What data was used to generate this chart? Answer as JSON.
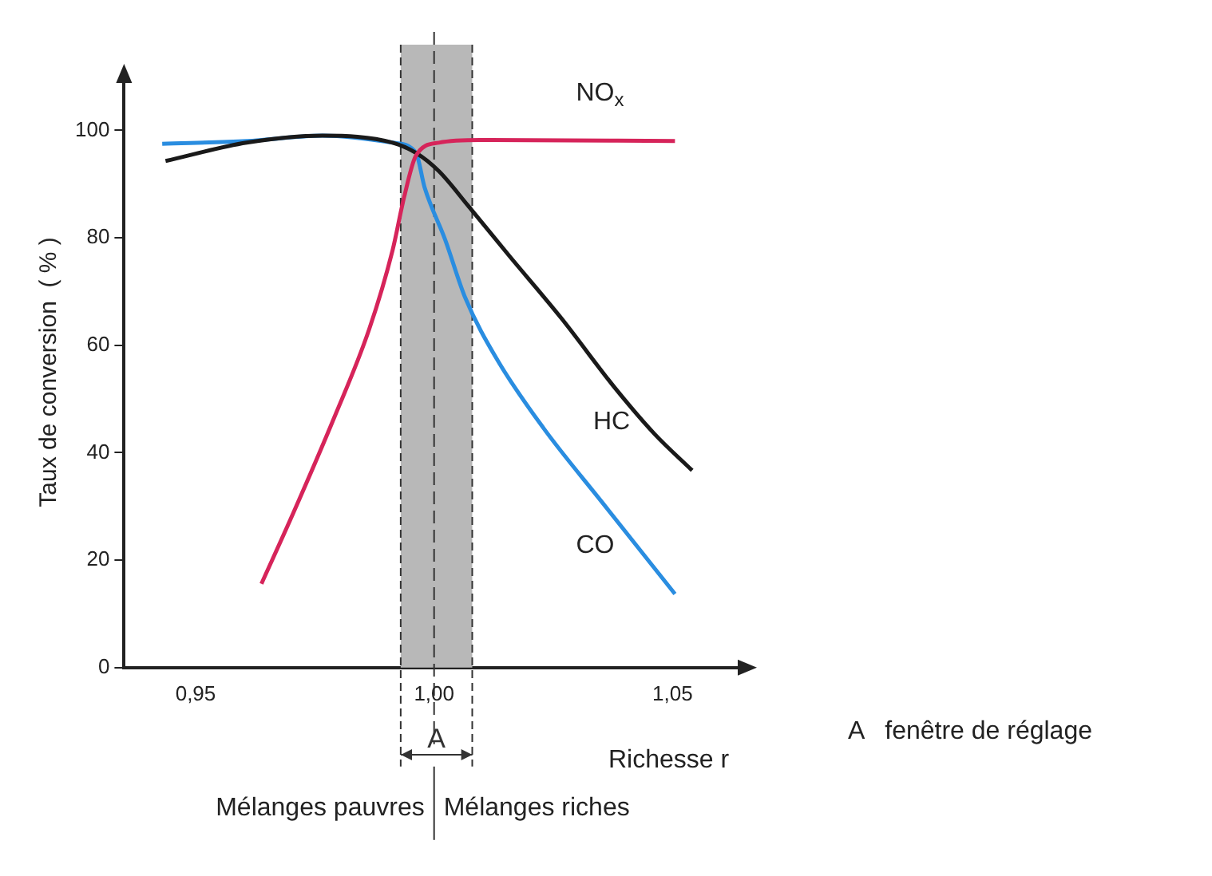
{
  "chart_data": {
    "type": "line",
    "ylabel": "Taux de conversion  ( % )",
    "xlabel": "Richesse r",
    "xlim": [
      0.935,
      1.065
    ],
    "xticks": [
      {
        "value": 0.95,
        "label": "0,95"
      },
      {
        "value": 1.0,
        "label": "1,00"
      },
      {
        "value": 1.05,
        "label": "1,05"
      }
    ],
    "ylim": [
      0,
      110
    ],
    "yticks": [
      0,
      20,
      40,
      60,
      80,
      100
    ],
    "grid": false,
    "legend": false,
    "marker": "none",
    "line_style": "solid",
    "series": [
      {
        "name": "NO$_{x}$",
        "color": "#d6245a",
        "x": [
          0.9638,
          0.9705,
          0.979,
          0.9864,
          0.9913,
          0.9937,
          0.9962,
          1.001,
          1.0096,
          1.0505
        ],
        "values": [
          15.6,
          28.8,
          46.4,
          63,
          77.7,
          87.5,
          95.3,
          97.7,
          98.2,
          98
        ]
      },
      {
        "name": "HC",
        "color": "#1a1a1a",
        "x": [
          0.9437,
          0.9607,
          0.9766,
          0.9913,
          0.9962,
          1.001,
          1.0071,
          1.0157,
          1.0267,
          1.0377,
          1.0462,
          1.0541
        ],
        "values": [
          94.3,
          97.7,
          99,
          97.7,
          95.8,
          92.4,
          86,
          76.7,
          65,
          52.3,
          43.5,
          36.7
        ]
      },
      {
        "name": "CO",
        "color": "#2a8de0",
        "x": [
          0.943,
          0.9607,
          0.9766,
          0.9913,
          0.9962,
          0.998,
          1.0023,
          1.0065,
          1.0133,
          1.023,
          1.0352,
          1.0505
        ],
        "values": [
          97.5,
          98,
          99,
          97.7,
          95.8,
          89.4,
          79.7,
          68.9,
          57.2,
          44.5,
          30.8,
          13.7
        ]
      }
    ],
    "bands": [
      {
        "axis": "x",
        "from": 0.993,
        "to": 1.008,
        "label": "A",
        "color": "#b8b8b8"
      }
    ],
    "ref_lines": [
      {
        "axis": "x",
        "value": 1.0,
        "line_style": "dashed",
        "color": "#333333"
      }
    ],
    "annotations": [
      "A   fenêtre de réglage",
      "Mélanges pauvres",
      "Mélanges riches"
    ]
  }
}
